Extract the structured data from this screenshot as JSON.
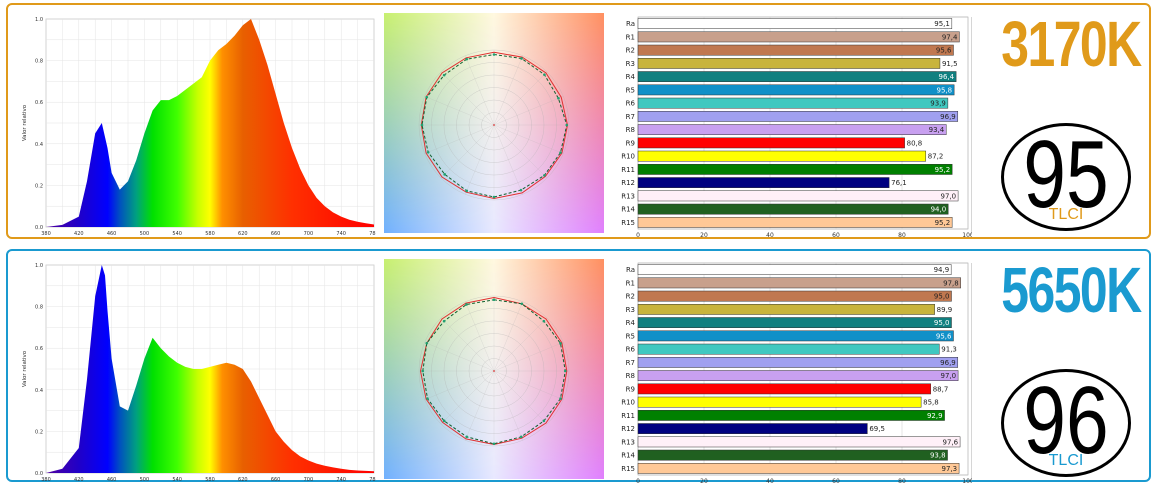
{
  "chart_data": [
    {
      "id": "warm",
      "type": "area",
      "ylabel": "Valor relativo",
      "xlim": [
        380,
        780
      ],
      "ylim": [
        0,
        1.0
      ],
      "x_ticks": [
        "380",
        "420",
        "460",
        "500",
        "540",
        "580",
        "620",
        "660",
        "700",
        "740",
        "780"
      ],
      "y_ticks": [
        "0.0",
        "0.2",
        "0.4",
        "0.6",
        "0.8",
        "1.0"
      ],
      "x": [
        380,
        400,
        420,
        430,
        440,
        448,
        455,
        460,
        470,
        480,
        490,
        500,
        510,
        520,
        530,
        540,
        550,
        560,
        570,
        580,
        590,
        600,
        610,
        620,
        630,
        640,
        650,
        660,
        670,
        680,
        690,
        700,
        710,
        720,
        730,
        740,
        750,
        760,
        770,
        780
      ],
      "y": [
        0.0,
        0.01,
        0.05,
        0.22,
        0.45,
        0.5,
        0.38,
        0.26,
        0.18,
        0.22,
        0.32,
        0.45,
        0.56,
        0.61,
        0.61,
        0.63,
        0.66,
        0.69,
        0.72,
        0.8,
        0.85,
        0.88,
        0.92,
        0.97,
        1.0,
        0.9,
        0.78,
        0.64,
        0.5,
        0.38,
        0.28,
        0.2,
        0.14,
        0.1,
        0.07,
        0.05,
        0.035,
        0.025,
        0.018,
        0.012
      ],
      "cct": "3170K",
      "tlci": "95",
      "tlci_label": "TLCI",
      "accent": "#e09a1a",
      "cri": {
        "labels": [
          "Ra",
          "R1",
          "R2",
          "R3",
          "R4",
          "R5",
          "R6",
          "R7",
          "R8",
          "R9",
          "R10",
          "R11",
          "R12",
          "R13",
          "R14",
          "R15"
        ],
        "values": [
          95.1,
          97.4,
          95.6,
          91.5,
          96.4,
          95.8,
          93.9,
          96.9,
          93.4,
          80.8,
          87.2,
          95.2,
          76.1,
          97.0,
          94.0,
          95.2
        ],
        "value_labels": [
          "95,1",
          "97,4",
          "95,6",
          "91,5",
          "96,4",
          "95,8",
          "93,9",
          "96,9",
          "93,4",
          "80,8",
          "87,2",
          "95,2",
          "76,1",
          "97,0",
          "94,0",
          "95,2"
        ],
        "x_ticks": [
          "0",
          "20",
          "40",
          "60",
          "80",
          "100"
        ],
        "xlim": [
          0,
          100
        ]
      },
      "cie_test": [
        94,
        96,
        95,
        93,
        97,
        96,
        95,
        94,
        96,
        95,
        93,
        95,
        96,
        97,
        94,
        95
      ],
      "cie_ref": [
        97,
        98,
        98,
        97,
        98,
        98,
        97,
        98,
        98,
        97,
        98,
        98,
        97,
        98,
        98,
        97
      ]
    },
    {
      "id": "cool",
      "type": "area",
      "ylabel": "Valor relativo",
      "xlim": [
        380,
        780
      ],
      "ylim": [
        0,
        1.0
      ],
      "x_ticks": [
        "380",
        "420",
        "460",
        "500",
        "540",
        "580",
        "620",
        "660",
        "700",
        "740",
        "780"
      ],
      "y_ticks": [
        "0.0",
        "0.2",
        "0.4",
        "0.6",
        "0.8",
        "1.0"
      ],
      "x": [
        380,
        400,
        420,
        430,
        440,
        448,
        452,
        455,
        460,
        470,
        480,
        490,
        500,
        510,
        520,
        530,
        540,
        550,
        560,
        570,
        580,
        590,
        600,
        610,
        620,
        630,
        640,
        650,
        660,
        670,
        680,
        690,
        700,
        710,
        720,
        730,
        740,
        750,
        760,
        770,
        780
      ],
      "y": [
        0.0,
        0.02,
        0.12,
        0.45,
        0.85,
        1.0,
        0.95,
        0.78,
        0.55,
        0.32,
        0.3,
        0.42,
        0.55,
        0.65,
        0.6,
        0.56,
        0.53,
        0.51,
        0.5,
        0.5,
        0.51,
        0.52,
        0.53,
        0.52,
        0.5,
        0.44,
        0.36,
        0.28,
        0.2,
        0.15,
        0.11,
        0.08,
        0.06,
        0.045,
        0.035,
        0.027,
        0.02,
        0.015,
        0.012,
        0.01,
        0.008
      ],
      "cct": "5650K",
      "tlci": "96",
      "tlci_label": "TLCI",
      "accent": "#1a9ad0",
      "cri": {
        "labels": [
          "Ra",
          "R1",
          "R2",
          "R3",
          "R4",
          "R5",
          "R6",
          "R7",
          "R8",
          "R9",
          "R10",
          "R11",
          "R12",
          "R13",
          "R14",
          "R15"
        ],
        "values": [
          94.9,
          97.8,
          95.0,
          89.9,
          95.0,
          95.6,
          91.3,
          96.9,
          97.0,
          88.7,
          85.8,
          92.9,
          69.5,
          97.6,
          93.8,
          97.3
        ],
        "value_labels": [
          "94,9",
          "97,8",
          "95,0",
          "89,9",
          "95,0",
          "95,6",
          "91,3",
          "96,9",
          "97,0",
          "88,7",
          "85,8",
          "92,9",
          "69,5",
          "97,6",
          "93,8",
          "97,3"
        ],
        "x_ticks": [
          "0",
          "20",
          "40",
          "60",
          "80",
          "100"
        ],
        "xlim": [
          0,
          100
        ]
      },
      "cie_test": [
        95,
        97,
        94,
        96,
        95,
        96,
        94,
        95,
        97,
        95,
        94,
        96,
        95,
        97,
        94,
        96
      ],
      "cie_ref": [
        98,
        97,
        98,
        98,
        97,
        98,
        98,
        97,
        98,
        98,
        97,
        98,
        98,
        97,
        98,
        98
      ]
    }
  ],
  "colors": {
    "bars": [
      "#ffffff",
      "#c8a08c",
      "#c07850",
      "#c8b43c",
      "#108080",
      "#1090c8",
      "#40c8c0",
      "#a0a0f0",
      "#c8a0f0",
      "#ff0000",
      "#ffff00",
      "#008000",
      "#000080",
      "#fff0f8",
      "#206020",
      "#ffc896"
    ]
  }
}
